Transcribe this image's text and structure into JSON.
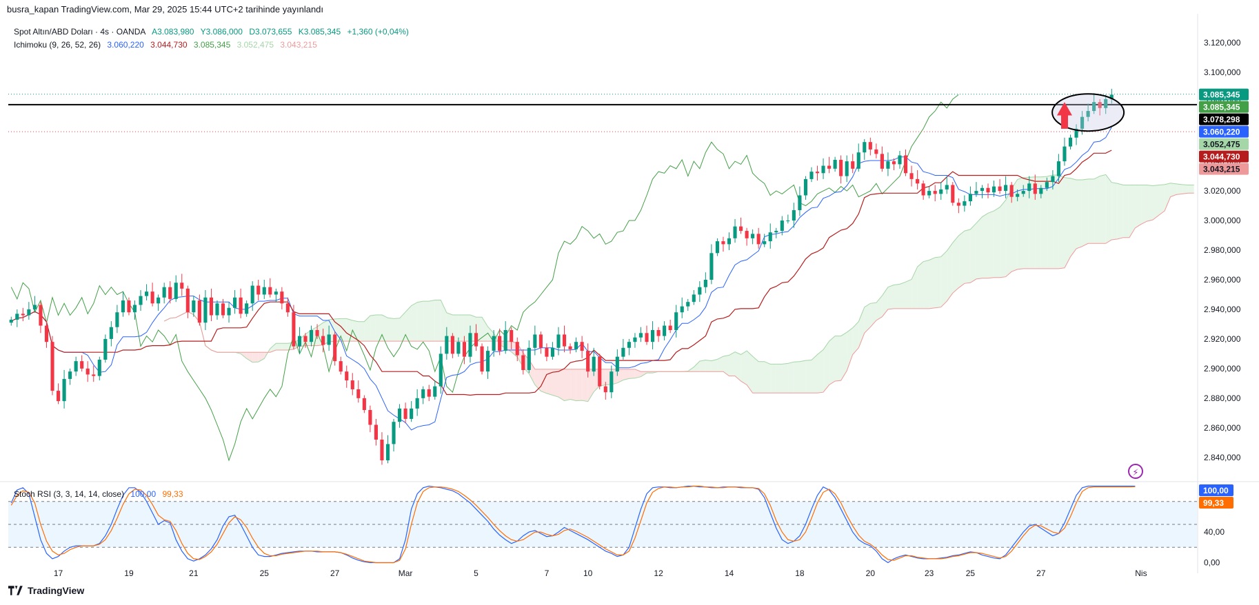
{
  "header": {
    "text": "busra_kapan TradingView.com, Mar 29, 2025 15:44 UTC+2 tarihinde yayınlandı"
  },
  "legend": {
    "symbol": "Spot Altın/ABD Doları · 4s · OANDA",
    "open": "A3.083,980",
    "high": "Y3.086,000",
    "low": "D3.073,655",
    "close": "K3.085,345",
    "change": "+1,360 (+0,04%)",
    "ichimoku_label": "Ichimoku (9, 26, 52, 26)",
    "ichimoku_values": [
      "3.060,220",
      "3.044,730",
      "3.085,345",
      "3.052,475",
      "3.043,215"
    ],
    "stoch_label": "Stoch RSI (3, 3, 14, 14, close)",
    "stoch_values": [
      "100,00",
      "99,33"
    ]
  },
  "footer": {
    "brand": "TradingView"
  },
  "colors": {
    "up": "#089981",
    "down": "#f23645",
    "tenkan": "#2962ff",
    "kijun": "#b71c1c",
    "chikou": "#43a047",
    "spanA": "#a5d6a7",
    "spanB": "#ef9a9a",
    "cloudUp": "#e8f5e9",
    "cloudDown": "#fce4e4",
    "stochK": "#2962ff",
    "stochD": "#ff6d00"
  },
  "chart_data": [
    {
      "type": "candlestick",
      "title": "Spot Altın/ABD Doları · 4s · OANDA",
      "ylim": [
        2825,
        3135
      ],
      "y_ticks": [
        2840,
        2860,
        2880,
        2900,
        2920,
        2940,
        2960,
        2980,
        3000,
        3020,
        3040,
        3060,
        3080,
        3100,
        3120
      ],
      "y_tick_labels": [
        "2.840,000",
        "2.860,000",
        "2.880,000",
        "2.900,000",
        "2.920,000",
        "2.940,000",
        "2.960,000",
        "2.980,000",
        "3.000,000",
        "3.020,000",
        "3.040,000",
        "3.060,000",
        "3.080,000",
        "3.100,000",
        "3.120,000"
      ],
      "x_labels": [
        {
          "label": "17",
          "index": 8
        },
        {
          "label": "19",
          "index": 20
        },
        {
          "label": "21",
          "index": 31
        },
        {
          "label": "25",
          "index": 43
        },
        {
          "label": "27",
          "index": 55
        },
        {
          "label": "Mar",
          "index": 67
        },
        {
          "label": "5",
          "index": 79
        },
        {
          "label": "7",
          "index": 91
        },
        {
          "label": "10",
          "index": 98
        },
        {
          "label": "12",
          "index": 110
        },
        {
          "label": "14",
          "index": 122
        },
        {
          "label": "18",
          "index": 134
        },
        {
          "label": "20",
          "index": 146
        },
        {
          "label": "23",
          "index": 156
        },
        {
          "label": "25",
          "index": 163
        },
        {
          "label": "27",
          "index": 175
        },
        {
          "label": "Nis",
          "index": 192
        }
      ],
      "close": [
        2933,
        2937,
        2936,
        2940,
        2943,
        2929,
        2918,
        2885,
        2878,
        2893,
        2898,
        2905,
        2900,
        2896,
        2895,
        2906,
        2920,
        2928,
        2938,
        2946,
        2938,
        2943,
        2949,
        2952,
        2944,
        2948,
        2955,
        2947,
        2958,
        2954,
        2938,
        2946,
        2931,
        2948,
        2936,
        2944,
        2936,
        2941,
        2948,
        2937,
        2944,
        2956,
        2950,
        2955,
        2950,
        2952,
        2944,
        2938,
        2915,
        2922,
        2918,
        2926,
        2922,
        2916,
        2923,
        2905,
        2898,
        2892,
        2886,
        2880,
        2872,
        2862,
        2852,
        2838,
        2849,
        2864,
        2873,
        2866,
        2873,
        2880,
        2886,
        2881,
        2888,
        2910,
        2922,
        2910,
        2918,
        2908,
        2924,
        2915,
        2898,
        2912,
        2922,
        2912,
        2926,
        2918,
        2909,
        2899,
        2914,
        2923,
        2914,
        2908,
        2914,
        2923,
        2915,
        2913,
        2918,
        2912,
        2898,
        2908,
        2888,
        2884,
        2898,
        2908,
        2914,
        2918,
        2921,
        2924,
        2918,
        2926,
        2922,
        2929,
        2926,
        2938,
        2942,
        2945,
        2950,
        2955,
        2960,
        2978,
        2986,
        2984,
        2988,
        2996,
        2993,
        2988,
        2991,
        2984,
        2986,
        2992,
        2993,
        3000,
        3000,
        3007,
        3017,
        3028,
        3033,
        3032,
        3037,
        3035,
        3041,
        3030,
        3040,
        3035,
        3046,
        3053,
        3048,
        3045,
        3035,
        3040,
        3038,
        3044,
        3032,
        3028,
        3025,
        3017,
        3020,
        3018,
        3021,
        3024,
        3012,
        3010,
        3013,
        3018,
        3020,
        3022,
        3019,
        3023,
        3020,
        3024,
        3016,
        3018,
        3020,
        3025,
        3018,
        3022,
        3026,
        3030,
        3040,
        3050,
        3056,
        3062,
        3070,
        3074,
        3080,
        3076,
        3082,
        3085
      ],
      "series": [
        {
          "name": "Ichimoku (9, 26, 52, 26)",
          "last_values": {
            "tenkan": 3060.22,
            "kijun": 3044.73,
            "chikou": 3085.345,
            "span_a": 3052.475,
            "span_b": 3043.215
          }
        }
      ],
      "price_tags": [
        {
          "value": 3085.345,
          "label": "3.085,345",
          "color": "#089981"
        },
        {
          "value": 3085.345,
          "label": "3.085,345",
          "color": "#43a047"
        },
        {
          "value": 3078.298,
          "label": "3.078,298",
          "color": "#000000"
        },
        {
          "value": 3060.22,
          "label": "3.060,220",
          "color": "#2962ff"
        },
        {
          "value": 3052.475,
          "label": "3.052,475",
          "color": "#a5d6a7"
        },
        {
          "value": 3044.73,
          "label": "3.044,730",
          "color": "#b71c1c"
        },
        {
          "value": 3043.215,
          "label": "3.043,215",
          "color": "#ef9a9a"
        }
      ],
      "horizontal_line": 3078.298,
      "annotations": [
        "ellipse around last candles near 3.078,298",
        "red up arrow"
      ]
    },
    {
      "type": "line",
      "title": "Stoch RSI (3, 3, 14, 14, close)",
      "ylim": [
        -5,
        105
      ],
      "y_tick_labels": [
        "40,00",
        "0,00"
      ],
      "y_ticks": [
        40,
        0
      ],
      "bands": [
        20,
        50,
        80
      ],
      "series": [
        {
          "name": "K",
          "last": 100.0,
          "values": [
            78,
            95,
            98,
            90,
            60,
            30,
            12,
            5,
            8,
            15,
            20,
            22,
            22,
            22,
            22,
            25,
            35,
            50,
            70,
            88,
            98,
            98,
            92,
            80,
            65,
            50,
            55,
            52,
            30,
            15,
            5,
            2,
            5,
            10,
            18,
            30,
            48,
            60,
            62,
            50,
            35,
            20,
            10,
            8,
            8,
            10,
            12,
            13,
            14,
            15,
            15,
            15,
            14,
            14,
            14,
            14,
            13,
            10,
            6,
            3,
            1,
            0,
            0,
            0,
            0,
            0,
            5,
            30,
            70,
            90,
            98,
            100,
            99,
            98,
            96,
            94,
            90,
            84,
            78,
            70,
            62,
            54,
            44,
            36,
            30,
            25,
            28,
            35,
            40,
            42,
            38,
            34,
            35,
            40,
            46,
            42,
            38,
            34,
            30,
            25,
            20,
            15,
            12,
            8,
            10,
            20,
            45,
            70,
            90,
            98,
            99,
            99,
            98,
            98,
            99,
            100,
            100,
            99,
            99,
            98,
            98,
            99,
            99,
            99,
            98,
            98,
            98,
            96,
            85,
            65,
            45,
            30,
            25,
            28,
            35,
            50,
            70,
            88,
            99,
            95,
            85,
            70,
            55,
            40,
            30,
            25,
            22,
            15,
            5,
            0,
            5,
            8,
            10,
            8,
            6,
            5,
            5,
            5,
            6,
            7,
            9,
            10,
            12,
            14,
            13,
            10,
            8,
            6,
            5,
            10,
            20,
            30,
            40,
            48,
            50,
            45,
            40,
            35,
            38,
            52,
            70,
            88,
            98,
            100,
            100,
            100,
            100,
            100,
            100,
            100,
            100,
            100
          ]
        },
        {
          "name": "D",
          "last": 99.33,
          "values": [
            75,
            88,
            94,
            92,
            78,
            50,
            28,
            15,
            10,
            12,
            17,
            20,
            22,
            22,
            22,
            24,
            30,
            42,
            58,
            76,
            90,
            96,
            95,
            88,
            76,
            62,
            56,
            54,
            42,
            25,
            12,
            5,
            4,
            8,
            14,
            24,
            38,
            52,
            60,
            56,
            46,
            32,
            20,
            12,
            9,
            9,
            11,
            12,
            13,
            14,
            15,
            15,
            15,
            14,
            14,
            14,
            13,
            11,
            8,
            5,
            2,
            1,
            0,
            0,
            0,
            0,
            3,
            18,
            50,
            78,
            93,
            98,
            99,
            99,
            98,
            96,
            93,
            88,
            82,
            75,
            67,
            59,
            50,
            42,
            35,
            30,
            28,
            30,
            35,
            40,
            40,
            37,
            35,
            37,
            42,
            44,
            41,
            37,
            33,
            28,
            23,
            18,
            14,
            10,
            10,
            15,
            32,
            55,
            78,
            92,
            97,
            99,
            99,
            98,
            99,
            99,
            100,
            100,
            99,
            99,
            98,
            98,
            99,
            99,
            99,
            98,
            98,
            97,
            90,
            75,
            55,
            40,
            30,
            28,
            30,
            40,
            58,
            78,
            92,
            96,
            90,
            78,
            62,
            48,
            36,
            28,
            24,
            18,
            10,
            4,
            3,
            6,
            9,
            9,
            7,
            6,
            5,
            5,
            5,
            6,
            8,
            9,
            11,
            13,
            13,
            12,
            10,
            8,
            6,
            8,
            15,
            25,
            35,
            44,
            49,
            48,
            44,
            40,
            38,
            45,
            60,
            78,
            93,
            98,
            99,
            99,
            99,
            99,
            99,
            99,
            99,
            99.33
          ]
        }
      ],
      "value_tags": [
        {
          "label": "100,00",
          "color": "#2962ff"
        },
        {
          "label": "99,33",
          "color": "#ff6d00"
        }
      ]
    }
  ]
}
